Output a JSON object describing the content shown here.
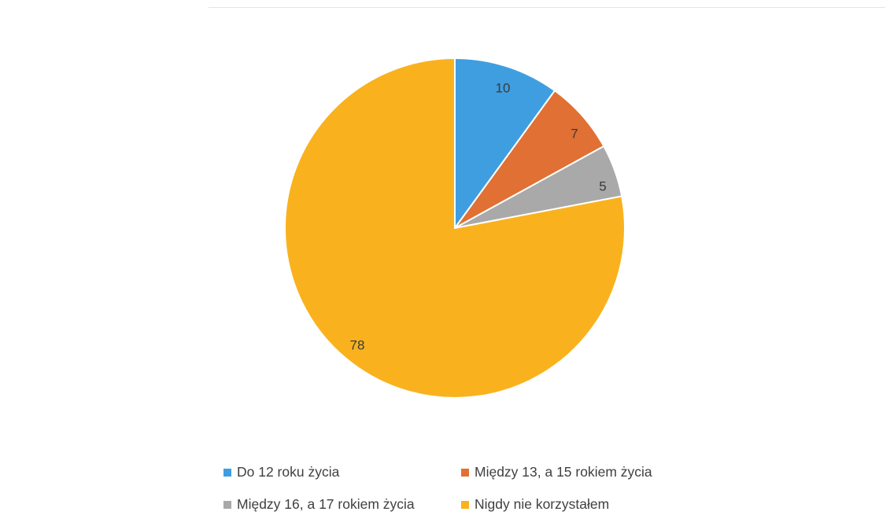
{
  "chart_data": {
    "type": "pie",
    "title": "",
    "categories": [
      "Do 12 roku życia",
      "Między 13, a 15 rokiem życia",
      "Między 16, a 17 rokiem życia",
      "Nigdy nie korzystałem"
    ],
    "values": [
      10,
      7,
      5,
      78
    ],
    "colors": [
      "#3f9ee0",
      "#e07033",
      "#a9a9a9",
      "#f9b21e"
    ],
    "data_labels": [
      "10",
      "7",
      "5",
      "78"
    ],
    "start_angle_deg": 0,
    "direction": "clockwise",
    "legend_position": "bottom"
  }
}
